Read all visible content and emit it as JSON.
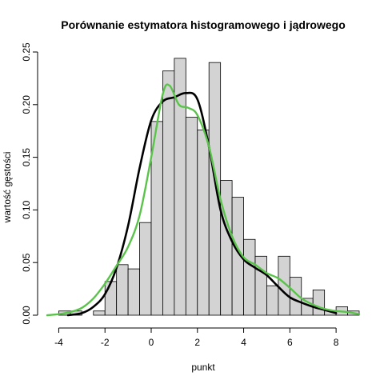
{
  "chart_data": {
    "type": "histogram",
    "title": "Porównanie estymatora histogramowego i jądrowego",
    "xlabel": "punkt",
    "ylabel": "wartość gęstości",
    "xlim": [
      -4.5,
      9
    ],
    "ylim": [
      0,
      0.25
    ],
    "x_ticks": [
      -4,
      -2,
      0,
      2,
      4,
      6,
      8
    ],
    "y_ticks": [
      0.0,
      0.05,
      0.1,
      0.15,
      0.2,
      0.25
    ],
    "y_tick_labels": [
      "0.00",
      "0.05",
      "0.10",
      "0.15",
      "0.20",
      "0.25"
    ],
    "grid": false,
    "legend": "none",
    "histogram": {
      "bin_width": 0.5,
      "bin_start": -4,
      "densities": [
        0.004,
        0.004,
        0.0,
        0.004,
        0.032,
        0.048,
        0.044,
        0.088,
        0.184,
        0.232,
        0.244,
        0.188,
        0.176,
        0.24,
        0.128,
        0.112,
        0.072,
        0.056,
        0.028,
        0.056,
        0.036,
        0.016,
        0.024,
        0.004,
        0.008,
        0.004
      ],
      "fill": "#d3d3d3",
      "stroke": "#000000"
    },
    "series": [
      {
        "color": "#000000",
        "x": [
          -3.6,
          -3.0,
          -2.5,
          -2.0,
          -1.5,
          -1.0,
          -0.5,
          0.0,
          0.5,
          1.0,
          1.5,
          2.0,
          2.5,
          3.0,
          3.5,
          4.0,
          4.5,
          5.0,
          5.5,
          6.0,
          6.5,
          7.0,
          7.5,
          8.0
        ],
        "y": [
          0.0,
          0.002,
          0.008,
          0.02,
          0.045,
          0.085,
          0.14,
          0.185,
          0.203,
          0.207,
          0.211,
          0.205,
          0.16,
          0.1,
          0.07,
          0.053,
          0.045,
          0.038,
          0.027,
          0.017,
          0.012,
          0.008,
          0.005,
          0.002
        ]
      },
      {
        "color": "#5ac34a",
        "x": [
          -4.5,
          -4.0,
          -3.5,
          -3.0,
          -2.5,
          -2.0,
          -1.5,
          -1.0,
          -0.5,
          0.0,
          0.5,
          0.8,
          1.2,
          1.6,
          2.0,
          2.5,
          3.0,
          3.5,
          4.0,
          4.5,
          5.0,
          5.5,
          6.0,
          6.5,
          7.0,
          7.5,
          8.0,
          8.5,
          9.0
        ],
        "y": [
          0.0,
          0.001,
          0.003,
          0.007,
          0.016,
          0.03,
          0.047,
          0.065,
          0.095,
          0.15,
          0.21,
          0.218,
          0.2,
          0.197,
          0.19,
          0.16,
          0.11,
          0.075,
          0.055,
          0.048,
          0.04,
          0.035,
          0.026,
          0.016,
          0.01,
          0.006,
          0.004,
          0.003,
          0.001
        ]
      }
    ]
  }
}
